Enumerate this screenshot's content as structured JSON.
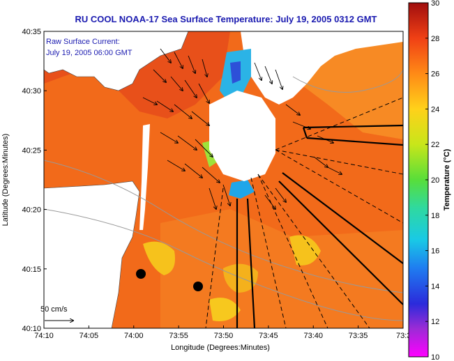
{
  "title": "RU COOL  NOAA-17  Sea Surface Temperature:  July 19, 2005 0312 GMT",
  "legend": {
    "line1": "Raw Surface Current:",
    "line2": "July 19, 2005 06:00 GMT"
  },
  "scale_label": "50 cm/s",
  "x_axis": {
    "label": "Longitude (Degrees:Minutes)",
    "ticks": [
      "74:10",
      "74:05",
      "74:00",
      "73:55",
      "73:50",
      "73:45",
      "73:40",
      "73:35",
      "73:3"
    ]
  },
  "y_axis": {
    "label": "Latitude (Degrees:Minutes)",
    "ticks": [
      "40:35",
      "40:30",
      "40:25",
      "40:20",
      "40:15",
      "40:10"
    ]
  },
  "colorbar": {
    "label": "Temperature (°C)",
    "ticks": [
      "30",
      "28",
      "26",
      "24",
      "22",
      "20",
      "18",
      "16",
      "14",
      "12",
      "10"
    ],
    "range": [
      10,
      30
    ]
  },
  "colors": {
    "sea_warm": "#f26a1a",
    "land": "#ffffff",
    "title": "#1a1ab0"
  }
}
